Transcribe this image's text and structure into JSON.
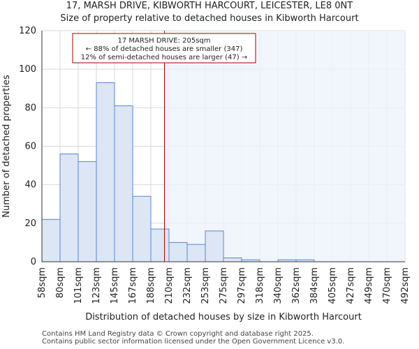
{
  "header": {
    "title_line1": "17, MARSH DRIVE, KIBWORTH HARCOURT, LEICESTER, LE8 0NT",
    "title_line2": "Size of property relative to detached houses in Kibworth Harcourt"
  },
  "footer": {
    "line1": "Contains HM Land Registry data © Crown copyright and database right 2025.",
    "line2": "Contains public sector information licensed under the Open Government Licence v3.0."
  },
  "chart_data": {
    "type": "bar",
    "title": "17, MARSH DRIVE, KIBWORTH HARCOURT, LEICESTER, LE8 0NT",
    "subtitle": "Size of property relative to detached houses in Kibworth Harcourt",
    "xlabel": "Distribution of detached houses by size in Kibworth Harcourt",
    "ylabel": "Number of detached properties",
    "ylim": [
      0,
      120
    ],
    "yticks": [
      0,
      20,
      40,
      60,
      80,
      100,
      120
    ],
    "tick_labels": [
      "58sqm",
      "80sqm",
      "101sqm",
      "123sqm",
      "145sqm",
      "167sqm",
      "188sqm",
      "210sqm",
      "232sqm",
      "253sqm",
      "275sqm",
      "297sqm",
      "318sqm",
      "340sqm",
      "362sqm",
      "384sqm",
      "405sqm",
      "427sqm",
      "449sqm",
      "470sqm",
      "492sqm"
    ],
    "values": [
      22,
      56,
      52,
      93,
      81,
      34,
      17,
      10,
      9,
      16,
      2,
      1,
      0,
      1,
      1,
      0,
      0,
      0,
      0,
      0
    ],
    "property_marker": {
      "position_bin": 6.75,
      "label": "17 MARSH DRIVE: 205sqm"
    },
    "annotation_lines": [
      "17 MARSH DRIVE: 205sqm",
      "← 88% of detached houses are smaller (347)",
      "12% of semi-detached houses are larger (47) →"
    ],
    "colors": {
      "bar_fill": "#dce6f5",
      "bar_stroke": "#5b86c8",
      "marker": "#aa0000",
      "highlight_bg": "#eef2fb",
      "grid": "#d9d9d9"
    },
    "grid": true
  }
}
